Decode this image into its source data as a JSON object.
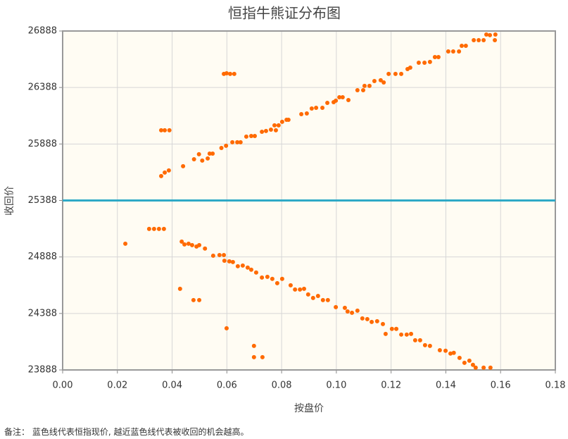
{
  "chart_data": {
    "type": "scatter",
    "title": "恒指牛熊证分布图",
    "x_label": "按盘价",
    "y_label": "收回价",
    "footnote": "备注： 蓝色线代表恒指现价, 越近蓝色线代表被收回的机会越高。",
    "xlim": [
      0,
      0.18
    ],
    "ylim": [
      23888,
      26888
    ],
    "xticks": [
      {
        "value": 0,
        "label": "0.00"
      },
      {
        "value": 0.02,
        "label": "0.02"
      },
      {
        "value": 0.04,
        "label": "0.04"
      },
      {
        "value": 0.06,
        "label": "0.06"
      },
      {
        "value": 0.08,
        "label": "0.08"
      },
      {
        "value": 0.1,
        "label": "0.10"
      },
      {
        "value": 0.12,
        "label": "0.12"
      },
      {
        "value": 0.14,
        "label": "0.14"
      },
      {
        "value": 0.16,
        "label": "0.16"
      },
      {
        "value": 0.18,
        "label": "0.18"
      }
    ],
    "yticks": [
      23888,
      24388,
      24888,
      25388,
      25888,
      26388,
      26888
    ],
    "grid": true,
    "reference_line": {
      "value": 25388,
      "color": "#2fa9c6"
    },
    "series": [
      {
        "color": "#ff6a00",
        "x": [
          0.036,
          0.0373,
          0.0388,
          0.036,
          0.0373,
          0.039,
          0.044,
          0.048,
          0.0498,
          0.051,
          0.053,
          0.0537,
          0.0548,
          0.058,
          0.0597,
          0.0589,
          0.0599,
          0.0612,
          0.0627,
          0.062,
          0.0638,
          0.065,
          0.0671,
          0.0689,
          0.0702,
          0.0728,
          0.0743,
          0.0761,
          0.0779,
          0.0774,
          0.0789,
          0.0802,
          0.0818,
          0.0825,
          0.0872,
          0.0892,
          0.091,
          0.0926,
          0.0949,
          0.0967,
          0.099,
          0.0998,
          0.1011,
          0.1023,
          0.1044,
          0.1077,
          0.1098,
          0.1103,
          0.1121,
          0.1139,
          0.1162,
          0.1173,
          0.1191,
          0.1216,
          0.1237,
          0.126,
          0.127,
          0.1301,
          0.1322,
          0.1342,
          0.136,
          0.1373,
          0.1409,
          0.1427,
          0.1448,
          0.1458,
          0.1473,
          0.1502,
          0.152,
          0.1538,
          0.1548,
          0.1561,
          0.1581,
          0.1579,
          0.0229,
          0.0316,
          0.0334,
          0.0352,
          0.037,
          0.0435,
          0.0445,
          0.046,
          0.0473,
          0.0489,
          0.0499,
          0.052,
          0.0429,
          0.0478,
          0.0499,
          0.055,
          0.0573,
          0.0589,
          0.0591,
          0.0609,
          0.0622,
          0.064,
          0.0658,
          0.0676,
          0.0689,
          0.0707,
          0.0728,
          0.0748,
          0.0766,
          0.0784,
          0.0802,
          0.0833,
          0.0849,
          0.0867,
          0.0882,
          0.0897,
          0.0915,
          0.0933,
          0.0951,
          0.0969,
          0.0998,
          0.1031,
          0.1041,
          0.1057,
          0.1077,
          0.1095,
          0.1113,
          0.1129,
          0.1149,
          0.117,
          0.118,
          0.1203,
          0.1219,
          0.1237,
          0.1257,
          0.1273,
          0.1288,
          0.1306,
          0.1324,
          0.1342,
          0.1378,
          0.1399,
          0.1417,
          0.1429,
          0.145,
          0.1468,
          0.1486,
          0.1499,
          0.1509,
          0.1538,
          0.1563,
          0.0599,
          0.0699,
          0.0699,
          0.073
        ],
        "values": [
          25604,
          25635,
          25654,
          26009,
          26009,
          26009,
          25691,
          25753,
          25797,
          25741,
          25760,
          25803,
          25803,
          25853,
          25872,
          26508,
          26514,
          26508,
          26508,
          25903,
          25903,
          25903,
          25953,
          25959,
          25959,
          25996,
          26003,
          26015,
          26009,
          26053,
          26053,
          26084,
          26102,
          26102,
          26152,
          26158,
          26202,
          26208,
          26208,
          26252,
          26258,
          26271,
          26302,
          26302,
          26277,
          26364,
          26364,
          26402,
          26402,
          26445,
          26452,
          26433,
          26508,
          26508,
          26508,
          26551,
          26564,
          26607,
          26607,
          26614,
          26657,
          26657,
          26707,
          26707,
          26707,
          26757,
          26757,
          26807,
          26807,
          26807,
          26857,
          26851,
          26857,
          26807,
          25005,
          25136,
          25136,
          25136,
          25136,
          25024,
          24999,
          25005,
          24993,
          24980,
          24993,
          24962,
          24606,
          24506,
          24506,
          24899,
          24905,
          24905,
          24855,
          24849,
          24843,
          24806,
          24812,
          24794,
          24775,
          24750,
          24706,
          24712,
          24694,
          24656,
          24694,
          24637,
          24600,
          24600,
          24606,
          24556,
          24525,
          24543,
          24506,
          24506,
          24444,
          24438,
          24406,
          24394,
          24413,
          24344,
          24338,
          24313,
          24319,
          24294,
          24207,
          24251,
          24251,
          24201,
          24201,
          24207,
          24151,
          24151,
          24107,
          24101,
          24063,
          24058,
          24033,
          24039,
          23995,
          23951,
          23970,
          23933,
          23908,
          23908,
          23908,
          24257,
          24101,
          24001,
          24001
        ]
      }
    ]
  }
}
